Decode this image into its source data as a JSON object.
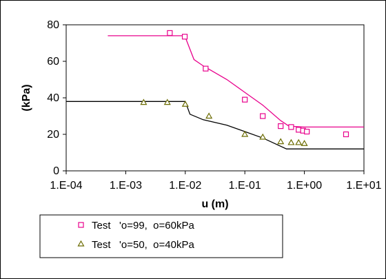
{
  "chart_data": {
    "type": "scatter",
    "x_scale": "log",
    "xlabel": "u (m)",
    "ylabel": "(kPa)",
    "xlim": [
      0.0001,
      10
    ],
    "ylim": [
      0,
      80
    ],
    "x_ticks": [
      0.0001,
      0.001,
      0.01,
      0.1,
      1,
      10
    ],
    "x_tick_labels": [
      "1.E-04",
      "1.E-03",
      "1.E-02",
      "1.E-01",
      "1.E+00",
      "1.E+01"
    ],
    "y_ticks": [
      0,
      20,
      40,
      60,
      80
    ],
    "y_tick_labels": [
      "0",
      "20",
      "40",
      "60",
      "80"
    ],
    "grid": false,
    "legend_position": "bottom",
    "series": [
      {
        "name": "Test   'o=99,  o=60kPa",
        "marker": "square",
        "color": "#e8008c",
        "points": [
          {
            "x": 0.0055,
            "y": 75.5
          },
          {
            "x": 0.0098,
            "y": 73.5
          },
          {
            "x": 0.022,
            "y": 56
          },
          {
            "x": 0.1,
            "y": 39
          },
          {
            "x": 0.2,
            "y": 30
          },
          {
            "x": 0.4,
            "y": 24.5
          },
          {
            "x": 0.6,
            "y": 24
          },
          {
            "x": 0.8,
            "y": 22.5
          },
          {
            "x": 0.95,
            "y": 22
          },
          {
            "x": 1.1,
            "y": 21.5
          },
          {
            "x": 5,
            "y": 20
          }
        ],
        "fit_line": [
          {
            "x": 0.0005,
            "y": 74
          },
          {
            "x": 0.0098,
            "y": 74
          },
          {
            "x": 0.014,
            "y": 61
          },
          {
            "x": 0.02,
            "y": 57.5
          },
          {
            "x": 0.05,
            "y": 50
          },
          {
            "x": 0.1,
            "y": 43
          },
          {
            "x": 0.2,
            "y": 36
          },
          {
            "x": 0.4,
            "y": 27.5
          },
          {
            "x": 0.55,
            "y": 24.5
          },
          {
            "x": 1,
            "y": 24
          },
          {
            "x": 10,
            "y": 24
          }
        ]
      },
      {
        "name": "Test   'o=50,  o=40kPa",
        "marker": "triangle",
        "color": "#6b6b00",
        "points": [
          {
            "x": 0.002,
            "y": 37.5
          },
          {
            "x": 0.005,
            "y": 37.5
          },
          {
            "x": 0.01,
            "y": 36.5
          },
          {
            "x": 0.025,
            "y": 30
          },
          {
            "x": 0.1,
            "y": 20
          },
          {
            "x": 0.2,
            "y": 18.5
          },
          {
            "x": 0.4,
            "y": 16
          },
          {
            "x": 0.6,
            "y": 15.5
          },
          {
            "x": 0.8,
            "y": 15.5
          },
          {
            "x": 1,
            "y": 15
          }
        ],
        "fit_line": [
          {
            "x": 0.0001,
            "y": 38
          },
          {
            "x": 0.01,
            "y": 38
          },
          {
            "x": 0.012,
            "y": 31
          },
          {
            "x": 0.02,
            "y": 28
          },
          {
            "x": 0.05,
            "y": 25
          },
          {
            "x": 0.1,
            "y": 21.5
          },
          {
            "x": 0.2,
            "y": 18
          },
          {
            "x": 0.5,
            "y": 12
          },
          {
            "x": 1,
            "y": 12
          },
          {
            "x": 10,
            "y": 12
          }
        ]
      }
    ]
  }
}
